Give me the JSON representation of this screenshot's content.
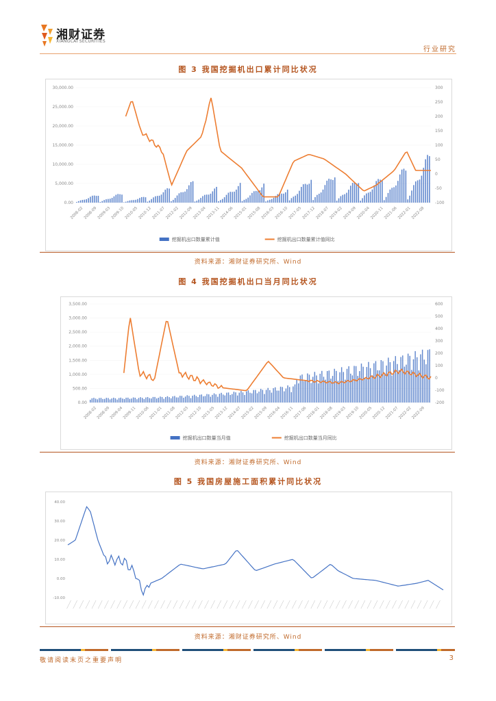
{
  "header": {
    "brand_cn": "湘财证券",
    "brand_en": "XIANGCAI SECURITIES",
    "section": "行业研究"
  },
  "figures": [
    {
      "title": "图 3  我国挖掘机出口累计同比状况",
      "source": "资料来源：湘财证券研究所、Wind",
      "legend": [
        "挖掘机出口数量累计值",
        "挖掘机出口数量累计值同比"
      ],
      "left_axis": [
        "30,000.00",
        "25,000.00",
        "20,000.00",
        "15,000.00",
        "10,000.00",
        "5,000.00",
        "0.00"
      ],
      "right_axis": [
        "300",
        "250",
        "200",
        "150",
        "100",
        "50",
        "0",
        "-50",
        "-100"
      ],
      "x_labels": [
        "2008-02",
        "2008-09",
        "2009-03",
        "2009-10",
        "2010-05",
        "2010-12",
        "2011-07",
        "2012-02",
        "2012-09",
        "2013-04",
        "2013-11",
        "2014-06",
        "2015-01",
        "2015-08",
        "2016-03",
        "2016-10",
        "2017-05",
        "2017-12",
        "2018-07",
        "2019-02",
        "2019-09",
        "2020-04",
        "2020-11",
        "2021-06",
        "2022-01",
        "2022-08"
      ]
    },
    {
      "title": "图 4  我国挖掘机出口当月同比状况",
      "source": "资料来源：湘财证券研究所、Wind",
      "legend": [
        "挖掘机出口数量当月值",
        "挖掘机出口数量当月同比"
      ],
      "left_axis": [
        "3,500.00",
        "3,000.00",
        "2,500.00",
        "2,000.00",
        "1,500.00",
        "1,000.00",
        "500.00",
        "0.00"
      ],
      "right_axis": [
        "600",
        "500",
        "400",
        "300",
        "200",
        "100",
        "0",
        "-100",
        "-200"
      ],
      "x_labels": [
        "2008-02",
        "2008-09",
        "2009-04",
        "2009-11",
        "2010-06",
        "2011-01",
        "2011-08",
        "2012-03",
        "2012-10",
        "2013-05",
        "2013-12",
        "2014-07",
        "2015-02",
        "2015-09",
        "2016-04",
        "2016-11",
        "2017-06",
        "2018-01",
        "2018-08",
        "2019-03",
        "2019-10",
        "2020-05",
        "2020-12",
        "2021-07",
        "2022-02",
        "2022-09"
      ]
    },
    {
      "title": "图 5  我国房屋施工面积累计同比状况",
      "source": "资料来源：湘财证券研究所、Wind",
      "left_axis": [
        "40.00",
        "30.00",
        "20.00",
        "10.00",
        "0.00",
        "-10.00"
      ]
    }
  ],
  "footer": {
    "notice": "敬请阅读末页之重要声明",
    "page": "3"
  },
  "colors": {
    "bar": "#4472c4",
    "line": "#ed7d31",
    "accent": "#c0692a"
  }
}
